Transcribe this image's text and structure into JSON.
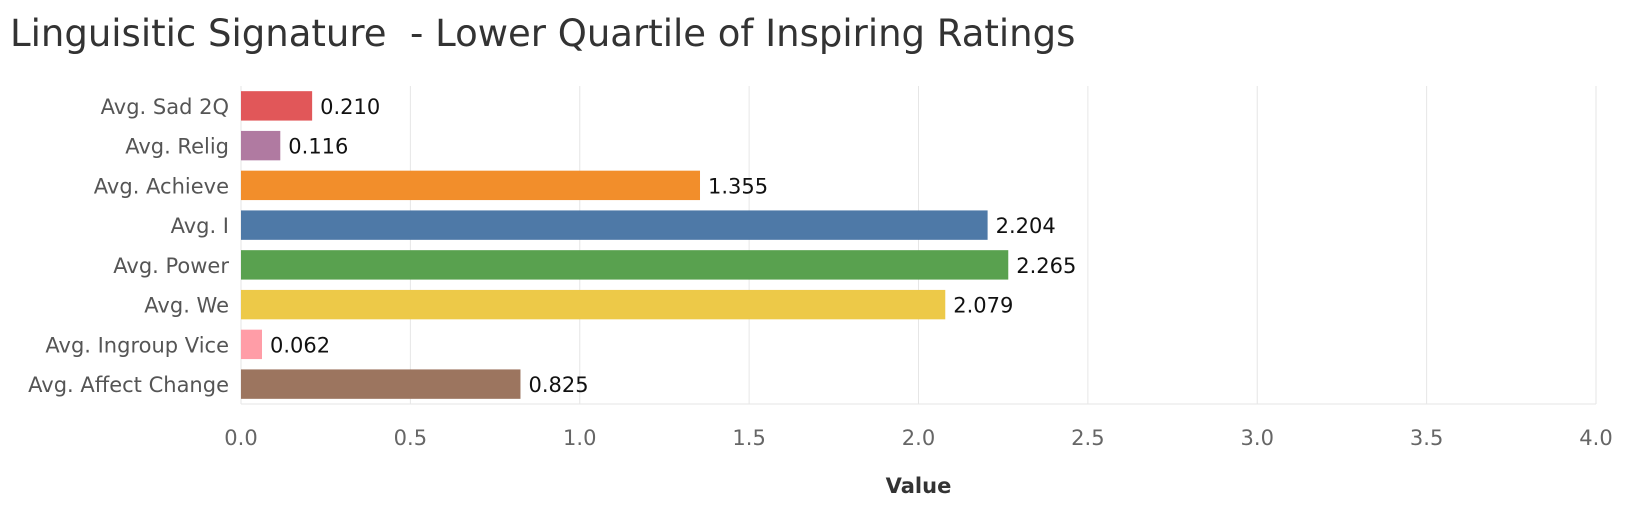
{
  "chart_data": {
    "type": "bar",
    "orientation": "horizontal",
    "title": "Linguisitic Signature  - Lower Quartile of Inspiring Ratings",
    "xlabel": "Value",
    "ylabel": "",
    "xlim": [
      0,
      4.0
    ],
    "grid": true,
    "categories": [
      "Avg. Sad 2Q",
      "Avg. Relig",
      "Avg. Achieve",
      "Avg. I",
      "Avg. Power",
      "Avg. We",
      "Avg. Ingroup Vice",
      "Avg. Affect Change"
    ],
    "values": [
      0.21,
      0.116,
      1.355,
      2.204,
      2.265,
      2.079,
      0.062,
      0.825
    ],
    "value_labels": [
      "0.210",
      "0.116",
      "1.355",
      "2.204",
      "2.265",
      "2.079",
      "0.062",
      "0.825"
    ],
    "colors": [
      "#e15759",
      "#b07aa1",
      "#f28e2b",
      "#4e79a7",
      "#59a14f",
      "#edc948",
      "#ff9da7",
      "#9c755f"
    ],
    "x_ticks": [
      0,
      0.5,
      1.0,
      1.5,
      2.0,
      2.5,
      3.0,
      3.5,
      4.0
    ],
    "x_tick_labels": [
      "0.0",
      "0.5",
      "1.0",
      "1.5",
      "2.0",
      "2.5",
      "3.0",
      "3.5",
      "4.0"
    ]
  }
}
